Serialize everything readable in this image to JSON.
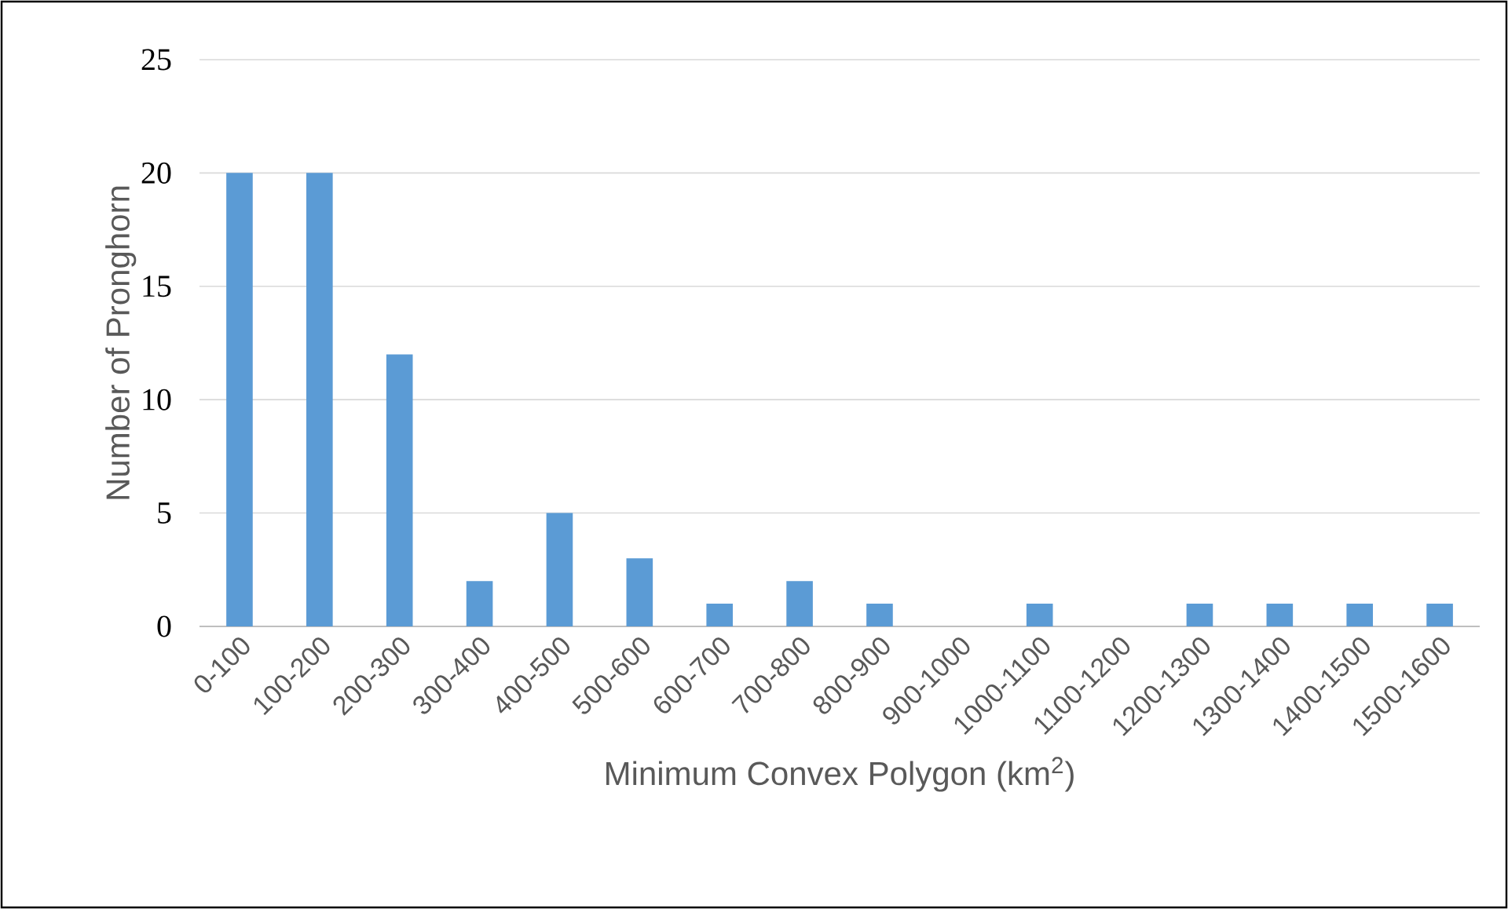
{
  "chart_data": {
    "type": "bar",
    "xlabel": "Minimum Convex Polygon (km$^{2}$)",
    "ylabel": "Number of Pronghorn",
    "categories": [
      "0-100",
      "100-200",
      "200-300",
      "300-400",
      "400-500",
      "500-600",
      "600-700",
      "700-800",
      "800-900",
      "900-1000",
      "1000-1100",
      "1100-1200",
      "1200-1300",
      "1300-1400",
      "1400-1500",
      "1500-1600"
    ],
    "values": [
      20,
      20,
      12,
      2,
      5,
      3,
      1,
      2,
      1,
      0,
      1,
      0,
      1,
      1,
      1,
      1
    ],
    "color": "#5b9bd5",
    "ylim": [
      0,
      25
    ],
    "yticks": [
      0,
      5,
      10,
      15,
      20,
      25
    ],
    "grid": "y"
  }
}
